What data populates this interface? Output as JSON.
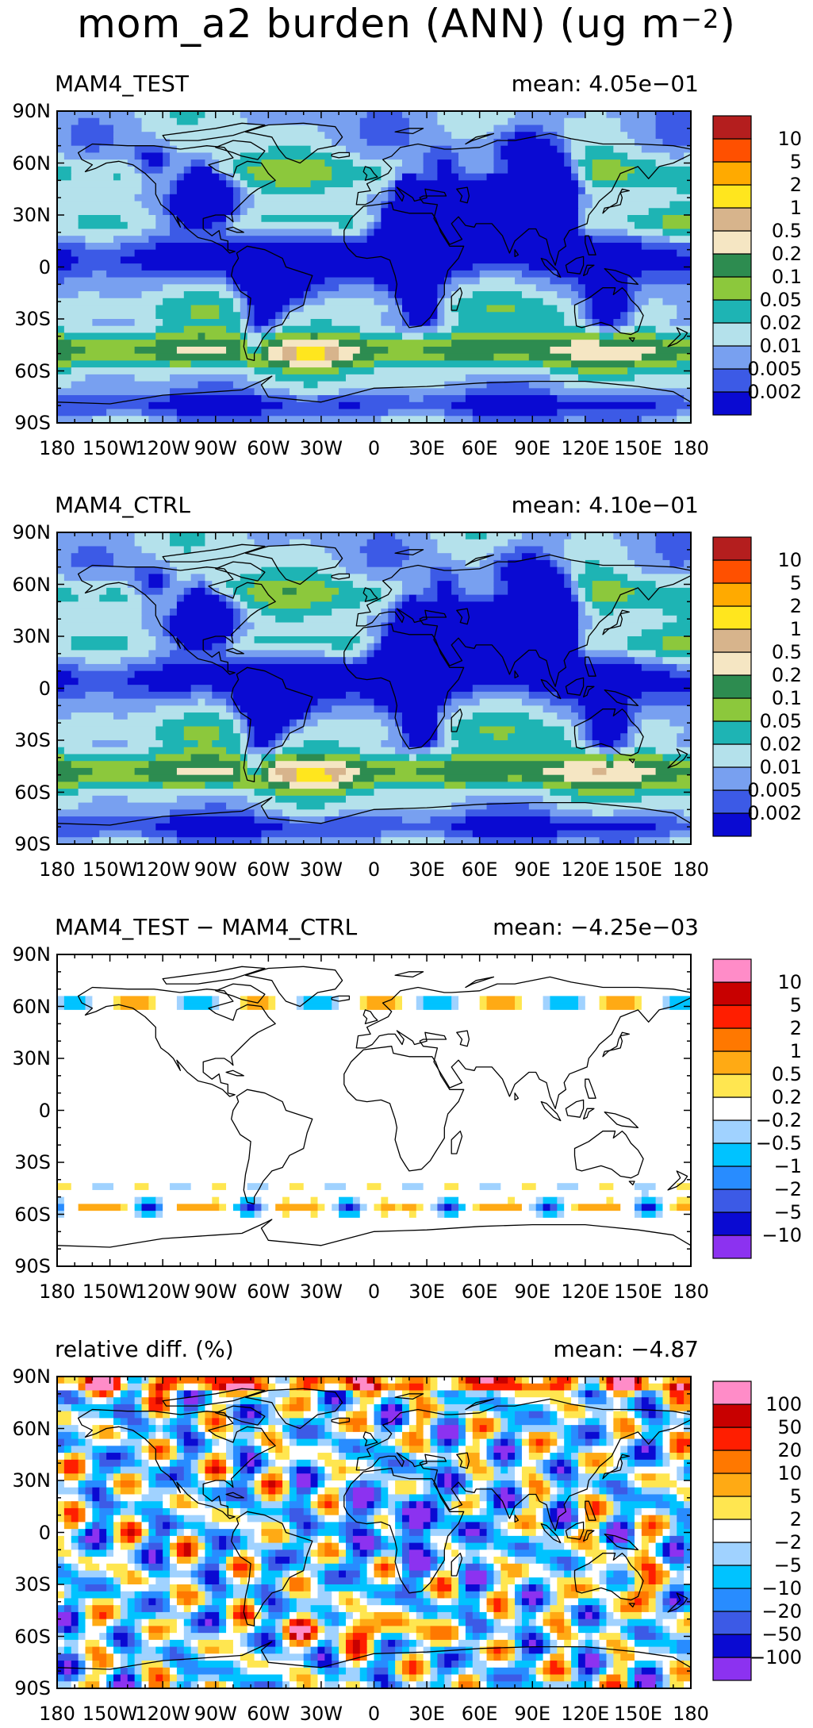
{
  "title": {
    "text": "mom_a2 burden (ANN) (ug m",
    "sup": "−2",
    "close": ")"
  },
  "axes": {
    "lat_ticks": [
      "90N",
      "60N",
      "30N",
      "0",
      "30S",
      "60S",
      "90S"
    ],
    "lon_ticks": [
      "180",
      "150W",
      "120W",
      "90W",
      "60W",
      "30W",
      "0",
      "30E",
      "60E",
      "90E",
      "120E",
      "150E",
      "180"
    ],
    "xlim": [
      -180,
      180
    ],
    "ylim": [
      -90,
      90
    ]
  },
  "palettes": {
    "abs": [
      "#0a0ad2",
      "#3c5ae6",
      "#78a0f0",
      "#b4e1eb",
      "#1eb4b4",
      "#8cc83c",
      "#2d8c50",
      "#f5e6c3",
      "#d7b48c",
      "#ffe61e",
      "#ffaa00",
      "#ff5000",
      "#b41e1e"
    ],
    "diff": [
      "#8c32f0",
      "#0a0ad2",
      "#3c5ae6",
      "#288cff",
      "#00c3ff",
      "#a0d2ff",
      "#ffffff",
      "#ffe650",
      "#ffaa14",
      "#ff7800",
      "#ff1e00",
      "#c80000",
      "#ff8cc8"
    ]
  },
  "chart_data": [
    {
      "type": "contour_map",
      "title_left": "MAM4_TEST",
      "title_right": "mean: 4.05e−01",
      "mean": 0.405,
      "colorbar": {
        "levels": [
          "0.002",
          "0.005",
          "0.01",
          "0.02",
          "0.05",
          "0.1",
          "0.2",
          "0.5",
          "1",
          "2",
          "5",
          "10"
        ],
        "palette": "abs"
      }
    },
    {
      "type": "contour_map",
      "title_left": "MAM4_CTRL",
      "title_right": "mean: 4.10e−01",
      "mean": 0.41,
      "colorbar": {
        "levels": [
          "0.002",
          "0.005",
          "0.01",
          "0.02",
          "0.05",
          "0.1",
          "0.2",
          "0.5",
          "1",
          "2",
          "5",
          "10"
        ],
        "palette": "abs"
      }
    },
    {
      "type": "contour_map",
      "title_left": "MAM4_TEST − MAM4_CTRL",
      "title_right": "mean: −4.25e−03",
      "mean": -0.00425,
      "colorbar": {
        "levels": [
          "−10",
          "−5",
          "−2",
          "−1",
          "−0.5",
          "−0.2",
          "0.2",
          "0.5",
          "1",
          "2",
          "5",
          "10"
        ],
        "palette": "diff"
      }
    },
    {
      "type": "contour_map",
      "title_left": "relative diff. (%)",
      "title_right": "mean: −4.87",
      "mean": -4.87,
      "colorbar": {
        "levels": [
          "−100",
          "−50",
          "−20",
          "−10",
          "−5",
          "−2",
          "2",
          "5",
          "10",
          "20",
          "50",
          "100"
        ],
        "palette": "diff"
      }
    }
  ]
}
